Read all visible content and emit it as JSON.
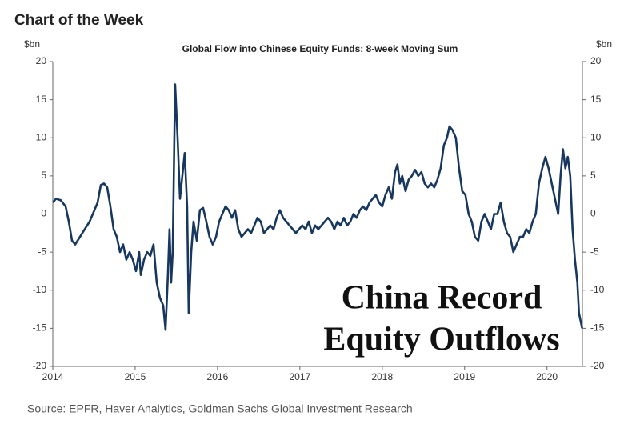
{
  "chart_data": {
    "type": "line",
    "title": "Chart of the Week",
    "subtitle": "Global Flow into Chinese Equity Funds: 8-week Moving Sum",
    "y_label": "$bn",
    "y2_label": "$bn",
    "annotation": [
      "China Record",
      "Equity Outflows"
    ],
    "source": "Source: EPFR, Haver Analytics, Goldman Sachs Global Investment Research",
    "color": "#17375e",
    "x": [
      2014.0,
      2014.039,
      2014.097,
      2014.155,
      2014.194,
      2014.233,
      2014.272,
      2014.33,
      2014.388,
      2014.447,
      2014.505,
      2014.544,
      2014.583,
      2014.621,
      2014.66,
      2014.699,
      2014.738,
      2014.777,
      2014.816,
      2014.854,
      2014.893,
      2014.932,
      2014.971,
      2015.01,
      2015.049,
      2015.068,
      2015.107,
      2015.146,
      2015.184,
      2015.223,
      2015.262,
      2015.301,
      2015.34,
      2015.369,
      2015.398,
      2015.417,
      2015.437,
      2015.456,
      2015.485,
      2015.515,
      2015.544,
      2015.573,
      2015.602,
      2015.631,
      2015.65,
      2015.68,
      2015.709,
      2015.748,
      2015.786,
      2015.825,
      2015.864,
      2015.903,
      2015.942,
      2015.981,
      2016.019,
      2016.058,
      2016.097,
      2016.136,
      2016.175,
      2016.214,
      2016.252,
      2016.291,
      2016.33,
      2016.369,
      2016.408,
      2016.447,
      2016.485,
      2016.524,
      2016.563,
      2016.602,
      2016.641,
      2016.68,
      2016.718,
      2016.757,
      2016.796,
      2016.835,
      2016.874,
      2016.913,
      2016.951,
      2016.99,
      2017.029,
      2017.068,
      2017.107,
      2017.146,
      2017.185,
      2017.223,
      2017.262,
      2017.301,
      2017.34,
      2017.379,
      2017.418,
      2017.456,
      2017.495,
      2017.534,
      2017.573,
      2017.612,
      2017.65,
      2017.689,
      2017.728,
      2017.767,
      2017.806,
      2017.845,
      2017.883,
      2017.922,
      2017.961,
      2018.0,
      2018.039,
      2018.078,
      2018.117,
      2018.155,
      2018.184,
      2018.214,
      2018.243,
      2018.282,
      2018.32,
      2018.359,
      2018.398,
      2018.437,
      2018.476,
      2018.515,
      2018.553,
      2018.592,
      2018.631,
      2018.67,
      2018.709,
      2018.748,
      2018.786,
      2018.816,
      2018.854,
      2018.893,
      2018.932,
      2018.971,
      2019.01,
      2019.049,
      2019.087,
      2019.126,
      2019.165,
      2019.204,
      2019.243,
      2019.282,
      2019.32,
      2019.359,
      2019.398,
      2019.437,
      2019.476,
      2019.515,
      2019.553,
      2019.592,
      2019.631,
      2019.67,
      2019.709,
      2019.748,
      2019.786,
      2019.825,
      2019.864,
      2019.903,
      2019.942,
      2019.981,
      2020.019,
      2020.058,
      2020.097,
      2020.136,
      2020.165,
      2020.194,
      2020.223,
      2020.252,
      2020.282,
      2020.311,
      2020.34,
      2020.369,
      2020.388,
      2020.408,
      2020.427
    ],
    "values": [
      1.5,
      2,
      1.8,
      1,
      -1,
      -3.5,
      -4,
      -3,
      -2,
      -1,
      0.5,
      1.5,
      3.8,
      4,
      3.5,
      1,
      -2,
      -3,
      -5,
      -4,
      -6,
      -5,
      -6,
      -7.5,
      -5,
      -8,
      -6,
      -5,
      -5.5,
      -4,
      -9,
      -11,
      -12,
      -15.2,
      -8,
      -2,
      -9,
      -5,
      17,
      10,
      2,
      5,
      8,
      1,
      -13,
      -5,
      -1,
      -3.5,
      0.5,
      0.8,
      -1,
      -3,
      -4,
      -3,
      -1,
      0,
      1,
      0.5,
      -0.5,
      0.5,
      -2,
      -3,
      -2.5,
      -2,
      -2.5,
      -1.5,
      -0.5,
      -1,
      -2.5,
      -2,
      -1.5,
      -2,
      -0.5,
      0.5,
      -0.5,
      -1,
      -1.5,
      -2,
      -2.5,
      -2,
      -1.5,
      -2,
      -1,
      -2.5,
      -1.5,
      -2,
      -1.5,
      -1,
      -0.5,
      -1,
      -2,
      -1,
      -1.5,
      -0.5,
      -1.5,
      -1,
      0,
      -0.5,
      0.5,
      1,
      0.5,
      1.5,
      2,
      2.5,
      1.5,
      1,
      2.5,
      3.5,
      2,
      5.5,
      6.5,
      4,
      5,
      3,
      4.5,
      5,
      5.8,
      5,
      5.5,
      4,
      3.5,
      4,
      3.5,
      4.5,
      6,
      9,
      10,
      11.5,
      11,
      10,
      6,
      3,
      2.5,
      0,
      -1,
      -3,
      -3.5,
      -1,
      0,
      -1,
      -2,
      0,
      0,
      1.5,
      -1,
      -2.5,
      -3,
      -5,
      -4,
      -3,
      -3,
      -2,
      -2.5,
      -1,
      0,
      4,
      6,
      7.5,
      6,
      4,
      2,
      0,
      5,
      8.5,
      6,
      7.5,
      5,
      -2,
      -6,
      -9,
      -13,
      -14,
      -15
    ],
    "xlim": [
      2014,
      2020.43
    ],
    "xticks": [
      2014,
      2015,
      2016,
      2017,
      2018,
      2019,
      2020
    ],
    "ylim": [
      -20,
      20
    ],
    "yticks": [
      -20,
      -15,
      -10,
      -5,
      0,
      5,
      10,
      15,
      20
    ],
    "y2lim": [
      -20,
      20
    ],
    "y2ticks": [
      -20,
      -15,
      -10,
      -5,
      0,
      5,
      10,
      15,
      20
    ],
    "zero_line": true
  }
}
